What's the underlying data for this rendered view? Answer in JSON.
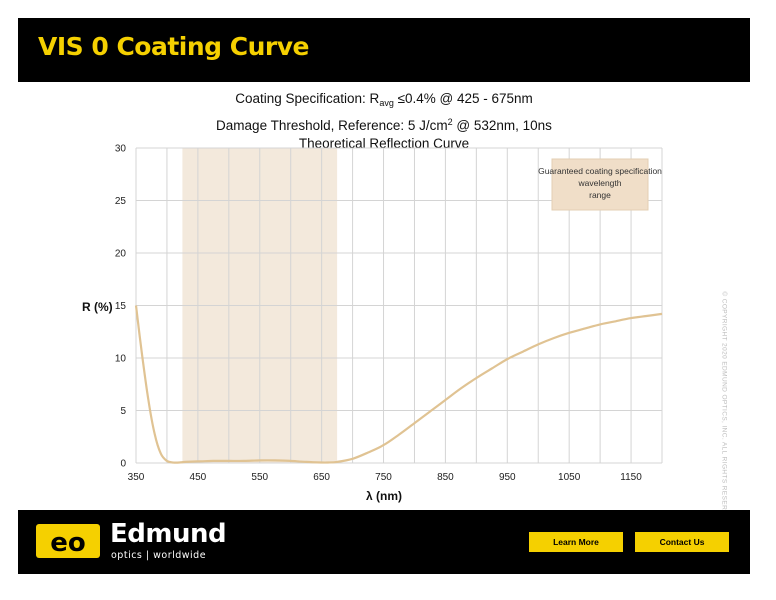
{
  "header": {
    "title": "VIS 0 Coating Curve"
  },
  "subtitles": {
    "spec_prefix": "Coating Specification: R",
    "spec_sub": "avg",
    "spec_suffix": " ≤0.4% @ 425 - 675nm",
    "damage_prefix": "Damage Threshold, Reference: 5 J/cm",
    "damage_sup": "2",
    "damage_suffix": " @ 532nm, 10ns",
    "curve_title": "Theoretical Reflection Curve"
  },
  "copyright": "© COPYRIGHT 2020 EDMUND OPTICS, INC. ALL RIGHTS RESERVED",
  "footer": {
    "logo_text": "Edmund",
    "tagline": "optics | worldwide",
    "learn_more": "Learn More",
    "contact_us": "Contact Us"
  },
  "colors": {
    "accent": "#f5d000",
    "curve": "#e0c393",
    "band": "#f3e9dc",
    "legend_bg": "#f0dec8"
  },
  "chart_data": {
    "type": "line",
    "xlabel": "λ (nm)",
    "ylabel": "R (%)",
    "xlim": [
      350,
      1200
    ],
    "ylim": [
      0,
      30
    ],
    "xticks": [
      350,
      450,
      550,
      650,
      750,
      850,
      950,
      1050,
      1150
    ],
    "yticks": [
      0,
      5,
      10,
      15,
      20,
      25,
      30
    ],
    "grid": true,
    "shaded_range": {
      "from": 425,
      "to": 675,
      "label": "Guaranteed coating specification wavelength range"
    },
    "legend_placement": "top-right",
    "series": [
      {
        "x": [
          350,
          360,
          370,
          380,
          390,
          400,
          410,
          420,
          430,
          450,
          475,
          500,
          525,
          550,
          575,
          600,
          625,
          650,
          660,
          675,
          700,
          725,
          750,
          775,
          800,
          825,
          850,
          875,
          900,
          925,
          950,
          975,
          1000,
          1025,
          1050,
          1075,
          1100,
          1125,
          1150,
          1175,
          1200
        ],
        "y": [
          15.0,
          10.2,
          6.0,
          2.8,
          0.9,
          0.2,
          0.05,
          0.05,
          0.1,
          0.15,
          0.2,
          0.2,
          0.2,
          0.25,
          0.25,
          0.2,
          0.1,
          0.05,
          0.05,
          0.1,
          0.4,
          1.0,
          1.7,
          2.7,
          3.8,
          4.9,
          6.0,
          7.1,
          8.1,
          9.0,
          9.9,
          10.6,
          11.3,
          11.9,
          12.4,
          12.8,
          13.2,
          13.5,
          13.8,
          14.0,
          14.2
        ]
      }
    ]
  }
}
